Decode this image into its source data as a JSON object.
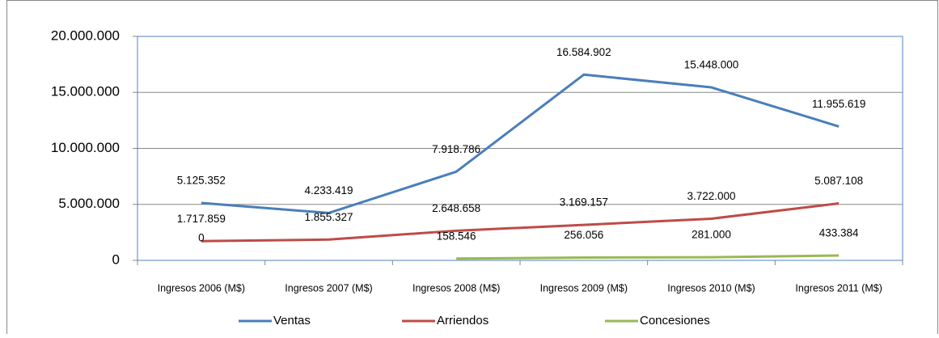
{
  "chart_data": {
    "type": "line",
    "categories": [
      "Ingresos 2006 (M$)",
      "Ingresos 2007  (M$)",
      "Ingresos 2008  (M$)",
      "Ingresos 2009  (M$)",
      "Ingresos 2010  (M$)",
      "Ingresos 2011  (M$)"
    ],
    "series": [
      {
        "name": "Ventas",
        "color": "#4a7ebb",
        "values": [
          5125352,
          4233419,
          7918786,
          16584902,
          15448000,
          11955619
        ],
        "value_labels": [
          "5.125.352",
          "4.233.419",
          "7.918.786",
          "16.584.902",
          "15.448.000",
          "11.955.619"
        ]
      },
      {
        "name": "Arriendos",
        "color": "#be4b48",
        "values": [
          1717859,
          1855327,
          2648658,
          3169157,
          3722000,
          5087108
        ],
        "value_labels": [
          "1.717.859",
          "1.855.327",
          "2.648.658",
          "3.169.157",
          "3.722.000",
          "5.087.108"
        ]
      },
      {
        "name": "Concesiones",
        "color": "#98b954",
        "values": [
          0,
          null,
          158546,
          256056,
          281000,
          433384
        ],
        "value_labels": [
          "0",
          null,
          "158.546",
          "256.056",
          "281.000",
          "433.384"
        ]
      }
    ],
    "ylim": [
      0,
      20000000
    ],
    "yticks": [
      0,
      {
        "value": 5000000,
        "label": "5.000.000"
      },
      {
        "value": 10000000,
        "label": "10.000.000"
      },
      {
        "value": 15000000,
        "label": "15.000.000"
      },
      {
        "value": 20000000,
        "label": "20.000.000"
      }
    ],
    "grid": true,
    "legend": "bottom"
  }
}
